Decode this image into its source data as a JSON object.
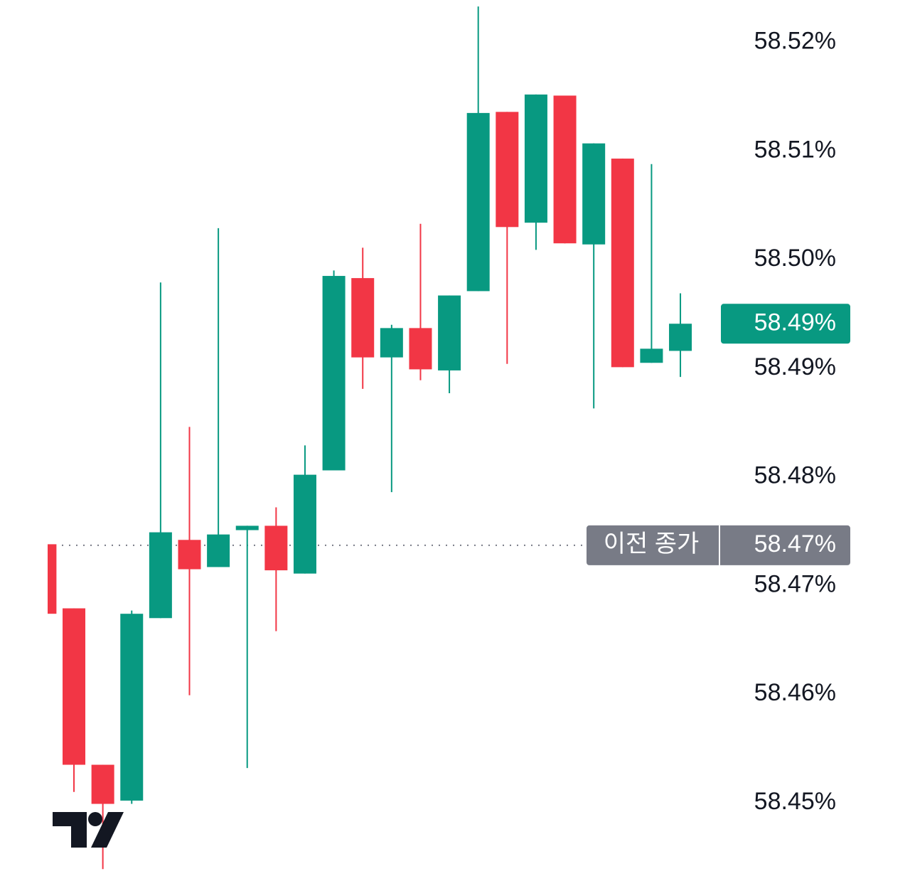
{
  "chart_data": {
    "type": "candlestick",
    "categories": [
      null,
      null,
      null,
      null,
      null,
      null,
      null,
      null,
      null,
      null,
      null,
      null,
      null,
      null,
      null,
      null,
      null,
      null,
      null,
      null,
      null,
      null,
      null
    ],
    "open": [
      58.4738,
      58.4679,
      58.4535,
      58.4502,
      58.467,
      58.4742,
      58.4717,
      58.4751,
      58.4755,
      58.4711,
      58.4806,
      58.4983,
      58.491,
      58.4937,
      58.4898,
      58.4971,
      58.5136,
      58.5034,
      58.5151,
      58.5014,
      58.5093,
      58.4905,
      58.4916
    ],
    "high": [
      58.4738,
      58.4679,
      58.4535,
      58.4677,
      58.4979,
      58.4846,
      58.5029,
      58.4755,
      58.4772,
      58.4829,
      58.499,
      58.5011,
      58.494,
      58.5033,
      58.4967,
      58.5233,
      58.5136,
      58.5152,
      58.5151,
      58.5107,
      58.5093,
      58.5088,
      58.4969
    ],
    "low": [
      58.4674,
      58.451,
      58.4439,
      58.4499,
      58.467,
      58.4599,
      58.4717,
      58.4532,
      58.4658,
      58.4711,
      58.4806,
      58.4881,
      58.4786,
      58.4889,
      58.4877,
      58.4971,
      58.4904,
      58.5009,
      58.5015,
      58.4863,
      58.4901,
      58.4905,
      58.4892
    ],
    "close": [
      58.4674,
      58.4535,
      58.4499,
      58.4674,
      58.4749,
      58.4715,
      58.4747,
      58.4755,
      58.4714,
      58.4802,
      58.4985,
      58.491,
      58.4937,
      58.4899,
      58.4967,
      58.5135,
      58.503,
      58.5152,
      58.5015,
      58.5107,
      58.4901,
      58.4918,
      58.4941
    ],
    "up_color": "#089981",
    "down_color": "#f23645",
    "ylim": [
      58.4428,
      58.5239
    ],
    "yticks": [
      {
        "value": 58.45,
        "label": "58.45%"
      },
      {
        "value": 58.46,
        "label": "58.46%"
      },
      {
        "value": 58.47,
        "label": "58.47%"
      },
      {
        "value": 58.48,
        "label": "58.48%"
      },
      {
        "value": 58.49,
        "label": "58.49%"
      },
      {
        "value": 58.5,
        "label": "58.50%"
      },
      {
        "value": 58.51,
        "label": "58.51%"
      },
      {
        "value": 58.52,
        "label": "58.52%"
      }
    ],
    "current_price": {
      "value": 58.4941,
      "label": "58.49%",
      "color": "#089981"
    },
    "previous_close": {
      "name": "이전 종가",
      "value": 58.4737,
      "label": "58.47%",
      "color": "#787b86"
    }
  }
}
